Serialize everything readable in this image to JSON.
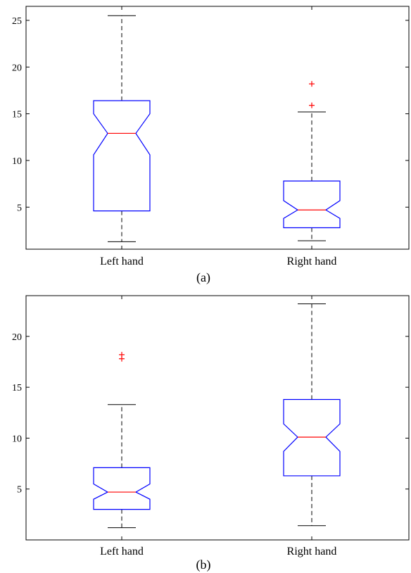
{
  "chart_data": [
    {
      "type": "box",
      "notched": true,
      "panel_label": "(a)",
      "categories": [
        "Left hand",
        "Right hand"
      ],
      "ylim": [
        0.5,
        26.5
      ],
      "yticks": [
        5,
        10,
        15,
        20,
        25
      ],
      "boxes": [
        {
          "label": "Left hand",
          "whisker_low": 1.3,
          "q1": 4.6,
          "median": 12.9,
          "q3": 16.4,
          "whisker_high": 25.5,
          "notch_low": 10.6,
          "notch_high": 15.0,
          "outliers": []
        },
        {
          "label": "Right hand",
          "whisker_low": 1.4,
          "q1": 2.8,
          "median": 4.7,
          "q3": 7.8,
          "whisker_high": 15.2,
          "notch_low": 3.8,
          "notch_high": 5.7,
          "outliers": [
            15.9,
            18.2
          ]
        }
      ],
      "colors": {
        "box": "#0000ff",
        "median": "#ff0000",
        "whisker": "#000000",
        "outlier": "#ff0000"
      }
    },
    {
      "type": "box",
      "notched": true,
      "panel_label": "(b)",
      "categories": [
        "Left hand",
        "Right hand"
      ],
      "ylim": [
        0.0,
        24.0
      ],
      "yticks": [
        5,
        10,
        15,
        20
      ],
      "boxes": [
        {
          "label": "Left hand",
          "whisker_low": 1.2,
          "q1": 3.0,
          "median": 4.7,
          "q3": 7.1,
          "whisker_high": 13.3,
          "notch_low": 4.0,
          "notch_high": 5.5,
          "outliers": [
            17.8,
            18.2
          ]
        },
        {
          "label": "Right hand",
          "whisker_low": 1.4,
          "q1": 6.3,
          "median": 10.1,
          "q3": 13.8,
          "whisker_high": 23.2,
          "notch_low": 8.7,
          "notch_high": 11.4,
          "outliers": []
        }
      ],
      "colors": {
        "box": "#0000ff",
        "median": "#ff0000",
        "whisker": "#000000",
        "outlier": "#ff0000"
      }
    }
  ]
}
